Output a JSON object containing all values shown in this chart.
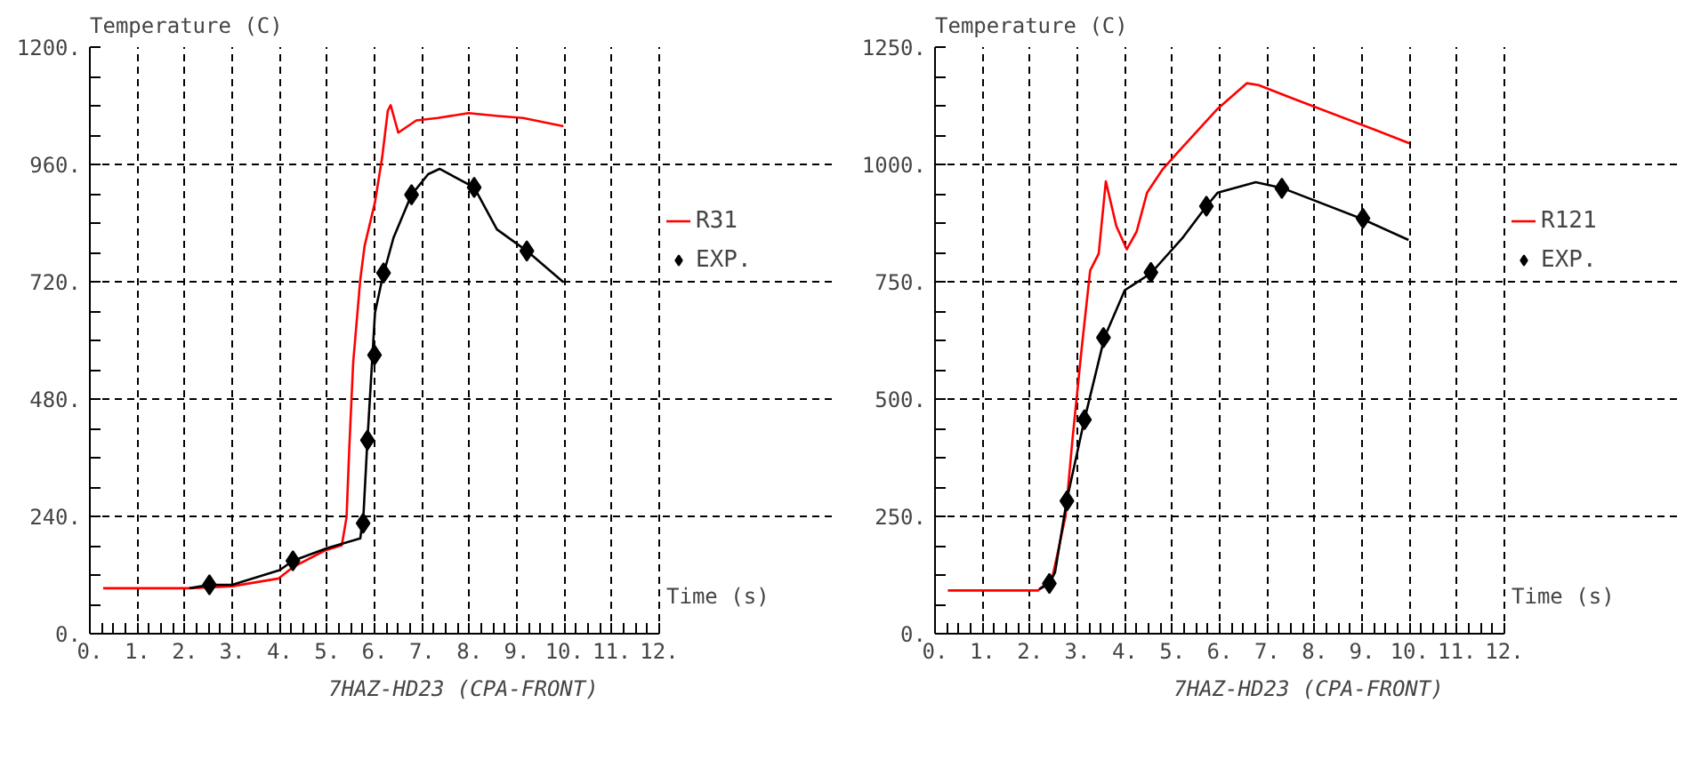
{
  "chart_data": [
    {
      "type": "line",
      "xlabel": "Time (s)",
      "ylabel": "Temperature (C)",
      "annotations": [
        "7HAZ-HD23 (CPA-FRONT)"
      ],
      "xlim": [
        0,
        12
      ],
      "ylim": [
        0,
        1200
      ],
      "xticks": [
        {
          "value": 0,
          "label": "0."
        },
        {
          "value": 1,
          "label": "1."
        },
        {
          "value": 2,
          "label": "2."
        },
        {
          "value": 3,
          "label": "3."
        },
        {
          "value": 4,
          "label": "4."
        },
        {
          "value": 5,
          "label": "5."
        },
        {
          "value": 6,
          "label": "6."
        },
        {
          "value": 7,
          "label": "7."
        },
        {
          "value": 8,
          "label": "8."
        },
        {
          "value": 9,
          "label": "9."
        },
        {
          "value": 10,
          "label": "10."
        },
        {
          "value": 11,
          "label": "11."
        },
        {
          "value": 12,
          "label": "12."
        }
      ],
      "yticks": [
        {
          "value": 0,
          "label": "0."
        },
        {
          "value": 240,
          "label": "240."
        },
        {
          "value": 480,
          "label": "480."
        },
        {
          "value": 720,
          "label": "720."
        },
        {
          "value": 960,
          "label": "960."
        },
        {
          "value": 1200,
          "label": "1200."
        }
      ],
      "grid": true,
      "legend": "right",
      "series": [
        {
          "name": "R31",
          "color": "#ff0000",
          "type": "line",
          "marker": "none",
          "x": [
            0.28,
            2.1,
            3.0,
            3.98,
            4.28,
            4.95,
            5.31,
            5.41,
            5.47,
            5.55,
            5.7,
            5.79,
            6.01,
            6.16,
            6.28,
            6.34,
            6.5,
            6.88,
            7.33,
            7.98,
            8.6,
            9.13,
            9.98
          ],
          "values": [
            93,
            93,
            97,
            113,
            136,
            170,
            181,
            238,
            385,
            555,
            725,
            793,
            883,
            974,
            1070,
            1081,
            1025,
            1050,
            1055,
            1065,
            1059,
            1055,
            1038
          ]
        },
        {
          "color": "#000000",
          "type": "line",
          "marker": "none",
          "x": [
            2.1,
            2.52,
            3.0,
            4.0,
            4.28,
            5.0,
            5.7,
            5.77,
            5.85,
            6.01,
            6.16,
            6.4,
            6.78,
            7.13,
            7.37,
            8.1,
            8.58,
            9.21,
            9.98
          ],
          "values": [
            93,
            100,
            100,
            130,
            149,
            175,
            195,
            249,
            396,
            657,
            725,
            810,
            898,
            940,
            951,
            913,
            827,
            783,
            719
          ]
        },
        {
          "name": "EXP.",
          "color": "#000000",
          "type": "scatter",
          "marker": "diamond",
          "x": [
            2.52,
            4.28,
            5.76,
            5.85,
            6.0,
            6.19,
            6.78,
            8.1,
            9.21
          ],
          "values": [
            100,
            149,
            226,
            396,
            570,
            738,
            898,
            913,
            783
          ]
        }
      ]
    },
    {
      "type": "line",
      "xlabel": "Time (s)",
      "ylabel": "Temperature (C)",
      "annotations": [
        "7HAZ-HD23 (CPA-FRONT)"
      ],
      "xlim": [
        0,
        12
      ],
      "ylim": [
        0,
        1250
      ],
      "xticks": [
        {
          "value": 0,
          "label": "0."
        },
        {
          "value": 1,
          "label": "1."
        },
        {
          "value": 2,
          "label": "2."
        },
        {
          "value": 3,
          "label": "3."
        },
        {
          "value": 4,
          "label": "4."
        },
        {
          "value": 5,
          "label": "5."
        },
        {
          "value": 6,
          "label": "6."
        },
        {
          "value": 7,
          "label": "7."
        },
        {
          "value": 8,
          "label": "8."
        },
        {
          "value": 9,
          "label": "9."
        },
        {
          "value": 10,
          "label": "10."
        },
        {
          "value": 11,
          "label": "11."
        },
        {
          "value": 12,
          "label": "12."
        }
      ],
      "yticks": [
        {
          "value": 0,
          "label": "0."
        },
        {
          "value": 250,
          "label": "250."
        },
        {
          "value": 500,
          "label": "500."
        },
        {
          "value": 750,
          "label": "750."
        },
        {
          "value": 1000,
          "label": "1000."
        },
        {
          "value": 1250,
          "label": "1250."
        }
      ],
      "grid": true,
      "legend": "right",
      "series": [
        {
          "name": "R121",
          "color": "#ff0000",
          "type": "line",
          "marker": "none",
          "x": [
            0.27,
            2.17,
            2.47,
            2.6,
            2.75,
            2.9,
            3.09,
            3.27,
            3.45,
            3.6,
            3.82,
            4.04,
            4.25,
            4.47,
            4.8,
            5.1,
            5.96,
            6.57,
            6.82,
            7.55,
            9.27,
            10.0
          ],
          "values": [
            92,
            92,
            119,
            179,
            250,
            417,
            607,
            774,
            810,
            964,
            869,
            819,
            857,
            940,
            990,
            1024,
            1119,
            1173,
            1169,
            1140,
            1074,
            1045
          ]
        },
        {
          "color": "#000000",
          "type": "line",
          "marker": "none",
          "x": [
            2.2,
            2.41,
            2.53,
            2.78,
            3.14,
            3.57,
            4.0,
            4.55,
            5.23,
            5.72,
            5.96,
            6.76,
            7.31,
            9.02,
            9.98
          ],
          "values": [
            95,
            107,
            131,
            286,
            452,
            631,
            732,
            768,
            845,
            911,
            940,
            962,
            950,
            883,
            839
          ]
        },
        {
          "name": "EXP.",
          "color": "#000000",
          "type": "scatter",
          "marker": "diamond",
          "x": [
            2.41,
            2.78,
            3.15,
            3.55,
            4.55,
            5.72,
            7.31,
            9.02
          ],
          "values": [
            107,
            283,
            456,
            631,
            770,
            911,
            949,
            885
          ]
        }
      ]
    }
  ]
}
